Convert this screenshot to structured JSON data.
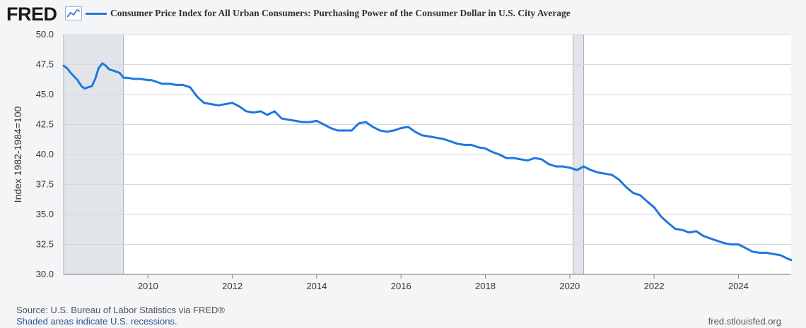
{
  "header": {
    "logo_text": "FRED",
    "logo_icon": "line-graph-icon",
    "title": "Consumer Price Index for All Urban Consumers: Purchasing Power of the Consumer Dollar in U.S. City Average"
  },
  "footer": {
    "source": "Source: U.S. Bureau of Labor Statistics via FRED®",
    "recession_note": "Shaded areas indicate U.S. recessions.",
    "site": "fred.stlouisfed.org"
  },
  "colors": {
    "line": "#1f77e0",
    "recession": "#e1e5ea",
    "plot_background": "#ffffff",
    "grid": "#d8d8d8"
  },
  "chart_data": {
    "type": "line",
    "title": "Consumer Price Index for All Urban Consumers: Purchasing Power of the Consumer Dollar in U.S. City Average",
    "xlabel": "",
    "ylabel": "Index 1982-1984=100",
    "xlim": [
      2008.0,
      2025.25
    ],
    "ylim": [
      30.0,
      50.0
    ],
    "grid": true,
    "legend": "top",
    "x_ticks": [
      2010,
      2012,
      2014,
      2016,
      2018,
      2020,
      2022,
      2024
    ],
    "y_ticks": [
      "30.0",
      "32.5",
      "35.0",
      "37.5",
      "40.0",
      "42.5",
      "45.0",
      "47.5",
      "50.0"
    ],
    "recessions": [
      [
        2008.0,
        2009.42
      ],
      [
        2020.08,
        2020.33
      ]
    ],
    "series": [
      {
        "x": [
          2008.0,
          2008.08,
          2008.17,
          2008.25,
          2008.33,
          2008.42,
          2008.5,
          2008.58,
          2008.67,
          2008.75,
          2008.83,
          2008.92,
          2009.0,
          2009.08,
          2009.17,
          2009.25,
          2009.33,
          2009.42,
          2009.5,
          2009.67,
          2009.83,
          2010.0,
          2010.08,
          2010.17,
          2010.25,
          2010.33,
          2010.5,
          2010.67,
          2010.83,
          2011.0,
          2011.17,
          2011.33,
          2011.5,
          2011.67,
          2011.83,
          2012.0,
          2012.17,
          2012.33,
          2012.5,
          2012.67,
          2012.83,
          2013.0,
          2013.17,
          2013.33,
          2013.5,
          2013.67,
          2013.83,
          2014.0,
          2014.17,
          2014.33,
          2014.5,
          2014.67,
          2014.83,
          2015.0,
          2015.17,
          2015.33,
          2015.5,
          2015.67,
          2015.83,
          2016.0,
          2016.17,
          2016.33,
          2016.5,
          2016.67,
          2016.83,
          2017.0,
          2017.17,
          2017.33,
          2017.5,
          2017.67,
          2017.83,
          2018.0,
          2018.17,
          2018.33,
          2018.5,
          2018.67,
          2018.83,
          2019.0,
          2019.17,
          2019.33,
          2019.5,
          2019.67,
          2019.83,
          2020.0,
          2020.17,
          2020.33,
          2020.5,
          2020.67,
          2020.83,
          2021.0,
          2021.17,
          2021.33,
          2021.5,
          2021.67,
          2021.83,
          2022.0,
          2022.17,
          2022.33,
          2022.5,
          2022.67,
          2022.83,
          2023.0,
          2023.17,
          2023.33,
          2023.5,
          2023.67,
          2023.83,
          2024.0,
          2024.17,
          2024.33,
          2024.5,
          2024.67,
          2024.83,
          2025.0,
          2025.17,
          2025.25
        ],
        "values": [
          47.4,
          47.2,
          46.8,
          46.5,
          46.2,
          45.7,
          45.5,
          45.6,
          45.7,
          46.3,
          47.2,
          47.6,
          47.4,
          47.1,
          47.0,
          46.9,
          46.8,
          46.4,
          46.4,
          46.3,
          46.3,
          46.2,
          46.2,
          46.1,
          46.0,
          45.9,
          45.9,
          45.8,
          45.8,
          45.6,
          44.8,
          44.3,
          44.2,
          44.1,
          44.2,
          44.3,
          44.0,
          43.6,
          43.5,
          43.6,
          43.3,
          43.6,
          43.0,
          42.9,
          42.8,
          42.7,
          42.7,
          42.8,
          42.5,
          42.2,
          42.0,
          42.0,
          42.0,
          42.6,
          42.7,
          42.3,
          42.0,
          41.9,
          42.0,
          42.2,
          42.3,
          41.9,
          41.6,
          41.5,
          41.4,
          41.3,
          41.1,
          40.9,
          40.8,
          40.8,
          40.6,
          40.5,
          40.2,
          40.0,
          39.7,
          39.7,
          39.6,
          39.5,
          39.7,
          39.6,
          39.2,
          39.0,
          39.0,
          38.9,
          38.7,
          39.0,
          38.7,
          38.5,
          38.4,
          38.3,
          37.9,
          37.3,
          36.8,
          36.6,
          36.1,
          35.6,
          34.8,
          34.3,
          33.8,
          33.7,
          33.5,
          33.6,
          33.2,
          33.0,
          32.8,
          32.6,
          32.5,
          32.5,
          32.2,
          31.9,
          31.8,
          31.8,
          31.7,
          31.6,
          31.3,
          31.2
        ]
      }
    ]
  }
}
